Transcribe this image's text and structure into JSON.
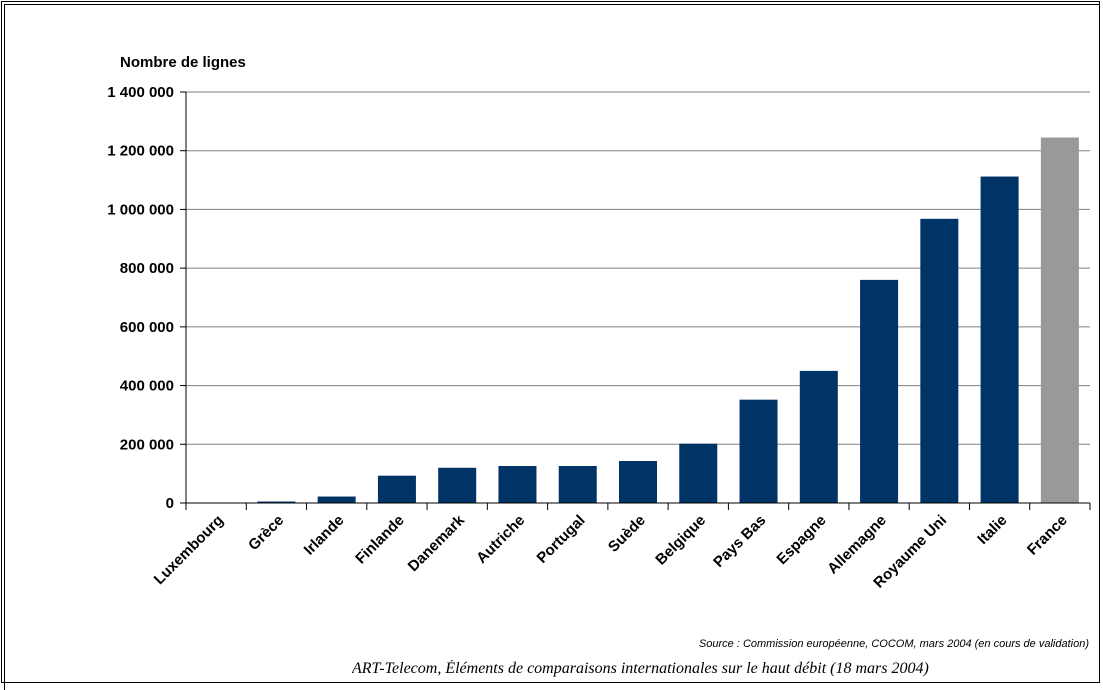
{
  "chart_data": {
    "type": "bar",
    "ylabel": "Nombre de lignes",
    "categories": [
      "Luxembourg",
      "Grèce",
      "Irlande",
      "Finlande",
      "Danemark",
      "Autriche",
      "Portugal",
      "Suède",
      "Belgique",
      "Pays Bas",
      "Espagne",
      "Allemagne",
      "Royaume Uni",
      "Italie",
      "France"
    ],
    "values": [
      0,
      5000,
      22000,
      93000,
      120000,
      126000,
      126000,
      143000,
      202000,
      352000,
      450000,
      760000,
      968000,
      1112000,
      1245000
    ],
    "ylim": [
      0,
      1400000
    ],
    "yticks": [
      0,
      200000,
      400000,
      600000,
      800000,
      1000000,
      1200000,
      1400000
    ],
    "ytick_labels": [
      "0",
      "200 000",
      "400 000",
      "600 000",
      "800 000",
      "1 000 000",
      "1 200 000",
      "1 400 000"
    ],
    "grid": true,
    "colors": {
      "default": "#003366",
      "highlight": "#999999"
    },
    "highlight_category": "France"
  },
  "footer": {
    "source": "Source : Commission européenne, COCOM, mars 2004 (en cours de validation)",
    "caption": "ART-Telecom, Éléments de comparaisons internationales sur le haut débit (18 mars 2004)"
  }
}
